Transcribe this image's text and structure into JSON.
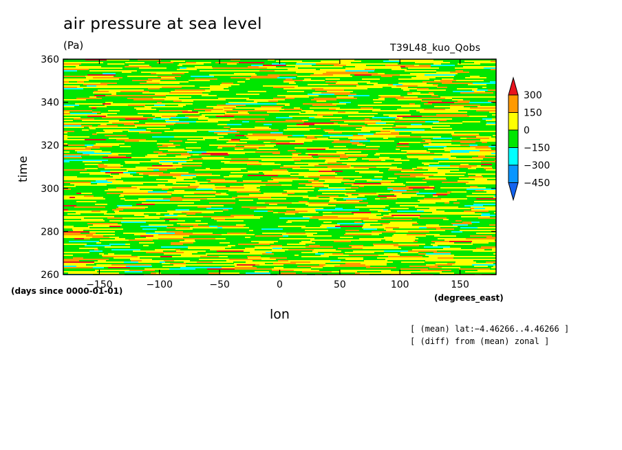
{
  "chart_data": {
    "type": "heatmap",
    "title": "air pressure at sea level",
    "units": "(Pa)",
    "experiment": "T39L48_kuo_Qobs",
    "xlabel": "lon",
    "ylabel": "time",
    "x_units": "(degrees_east)",
    "y_units": "(days since 0000-01-01)",
    "xlim": [
      -180,
      180
    ],
    "ylim": [
      260,
      360
    ],
    "x_ticks": [
      -150,
      -100,
      -50,
      0,
      50,
      100,
      150
    ],
    "y_ticks": [
      260,
      280,
      300,
      320,
      340,
      360
    ],
    "colorbar": {
      "levels": [
        300,
        150,
        0,
        -150,
        -300,
        -450
      ],
      "labels": [
        "300",
        "150",
        "0",
        "−150",
        "−300",
        "−450"
      ],
      "colors": [
        "#e8141e",
        "#ff9a00",
        "#ffff00",
        "#00e600",
        "#00ffff",
        "#0a96ff",
        "#1464f0"
      ]
    },
    "notes": [
      "[ (mean) lat:−4.46266..4.46266 ]",
      "[ (diff) from (mean) zonal ]"
    ]
  }
}
